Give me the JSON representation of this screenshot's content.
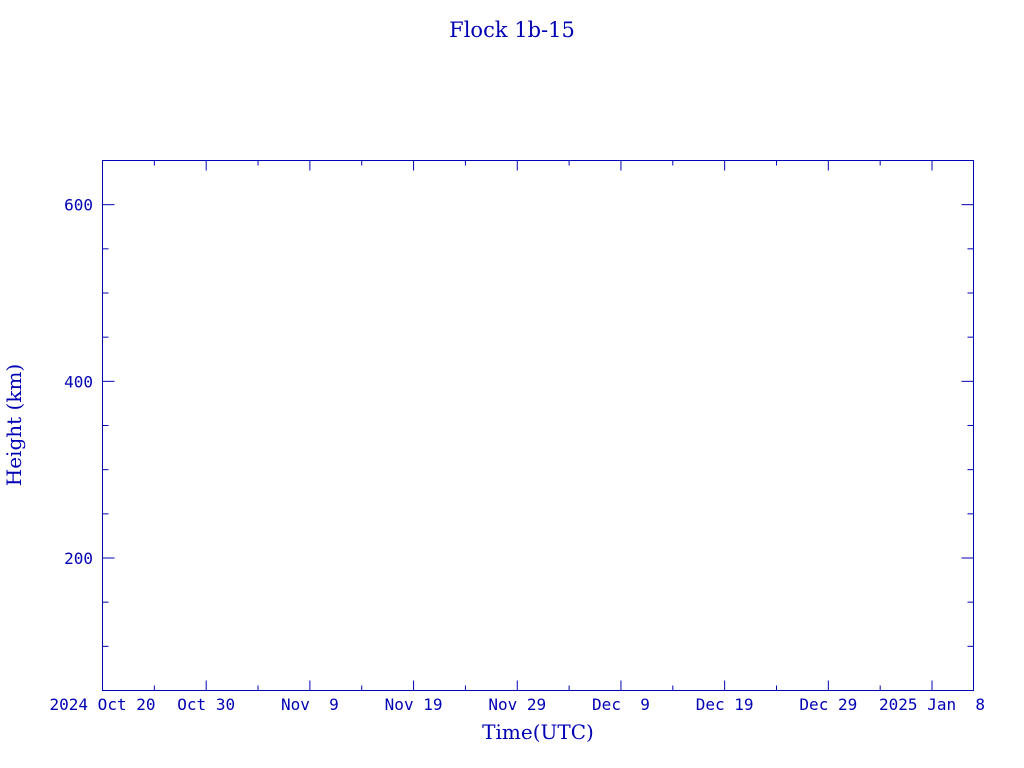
{
  "chart_data": {
    "type": "line",
    "title": "Flock 1b-15",
    "xlabel": "Time(UTC)",
    "ylabel": "Height (km)",
    "color": "#0000b4",
    "xlim": [
      "2024-10-20",
      "2025-01-12"
    ],
    "ylim": [
      50,
      650
    ],
    "x_ticks": [
      {
        "date": "2024-10-20",
        "label": "2024 Oct 20"
      },
      {
        "date": "2024-10-30",
        "label": "Oct 30"
      },
      {
        "date": "2024-11-09",
        "label": "Nov  9"
      },
      {
        "date": "2024-11-19",
        "label": "Nov 19"
      },
      {
        "date": "2024-11-29",
        "label": "Nov 29"
      },
      {
        "date": "2024-12-09",
        "label": "Dec  9"
      },
      {
        "date": "2024-12-19",
        "label": "Dec 19"
      },
      {
        "date": "2024-12-29",
        "label": "Dec 29"
      },
      {
        "date": "2025-01-08",
        "label": "2025 Jan  8"
      }
    ],
    "y_ticks": [
      {
        "value": 200,
        "label": "200"
      },
      {
        "value": 400,
        "label": "400"
      },
      {
        "value": 600,
        "label": "600"
      }
    ],
    "grid": false,
    "series": []
  }
}
